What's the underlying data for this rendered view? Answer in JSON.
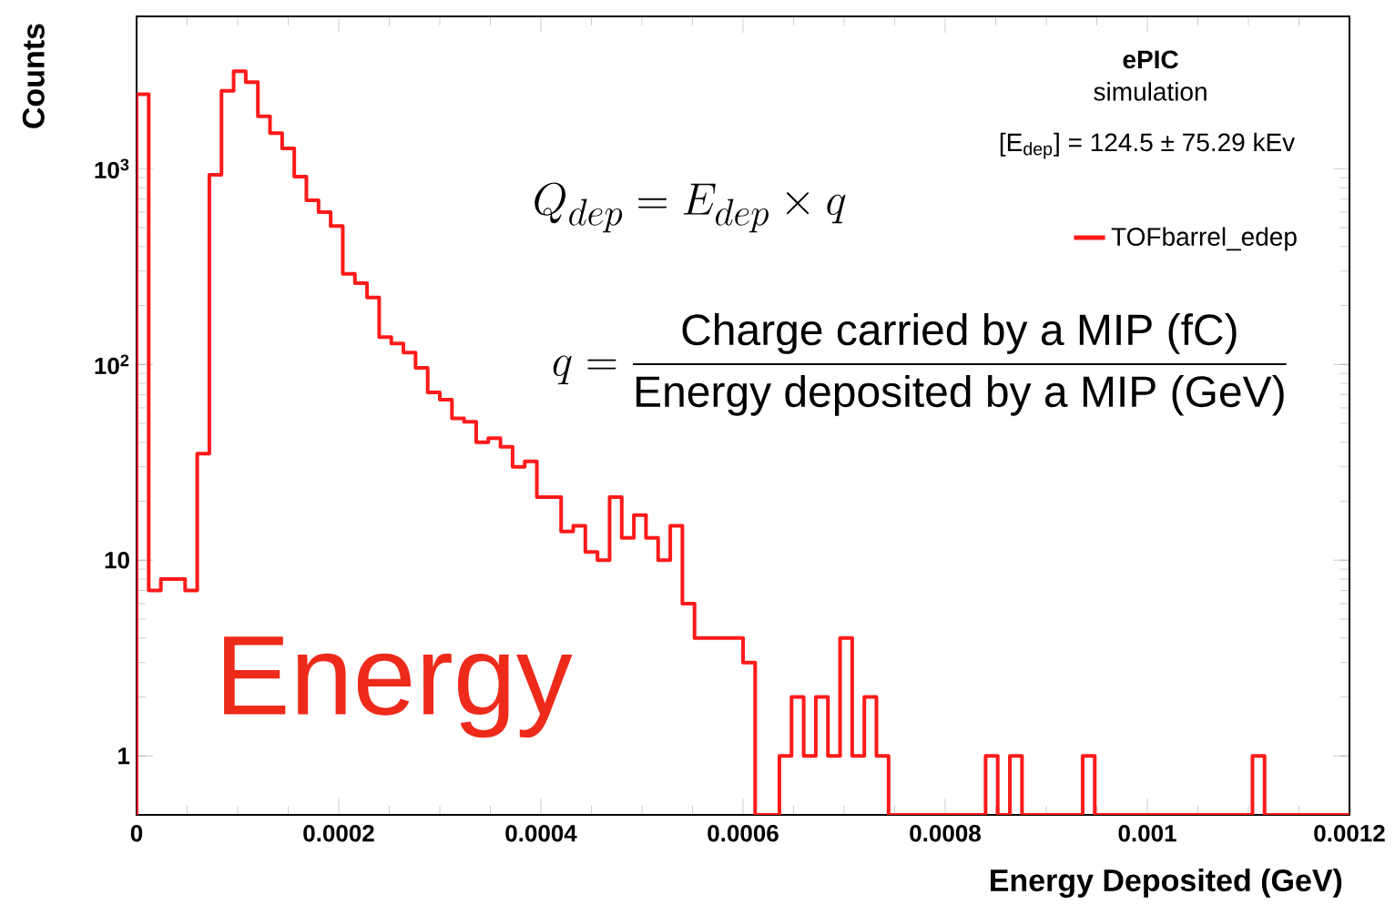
{
  "chart_data": {
    "type": "histogram",
    "xlabel": "Energy Deposited (GeV)",
    "ylabel": "Counts",
    "annotations": [
      "ePIC",
      "simulation",
      "[E$_{dep}$] = 124.5 ± 75.29 kEv",
      "Q_{dep} = E_{dep} \\times q",
      "q = \\frac{\\text{Charge carried by a MIP (fC)}}{\\text{Energy deposited by a MIP (GeV)}}",
      "Energy"
    ],
    "bins": [
      0,
      1.2e-05,
      2.4e-05,
      3.6e-05,
      4.8e-05,
      6e-05,
      7.2e-05,
      8.4e-05,
      9.6e-05,
      0.000108,
      0.00012,
      0.000132,
      0.000144,
      0.000156,
      0.000168,
      0.00018,
      0.000192,
      0.000204,
      0.000216,
      0.000228,
      0.00024,
      0.000252,
      0.000264,
      0.000276,
      0.000288,
      0.0003,
      0.000312,
      0.000324,
      0.000336,
      0.000348,
      0.00036,
      0.000372,
      0.000384,
      0.000396,
      0.000408,
      0.00042,
      0.000432,
      0.000444,
      0.000456,
      0.000468,
      0.00048,
      0.000492,
      0.000504,
      0.000516,
      0.000528,
      0.00054,
      0.000552,
      0.000564,
      0.000576,
      0.000588,
      0.0006,
      0.000612,
      0.000624,
      0.000636,
      0.000648,
      0.00066,
      0.000672,
      0.000684,
      0.000696,
      0.000708,
      0.00072,
      0.000732,
      0.000744,
      0.000756,
      0.000768,
      0.00078,
      0.000792,
      0.000804,
      0.000816,
      0.000828,
      0.00084,
      0.000852,
      0.000864,
      0.000876,
      0.000888,
      0.0009,
      0.000912,
      0.000924,
      0.000936,
      0.000948,
      0.00096,
      0.000972,
      0.000984,
      0.000996,
      0.001008,
      0.00102,
      0.001032,
      0.001044,
      0.001056,
      0.001068,
      0.00108,
      0.001092,
      0.001104,
      0.001116,
      0.001128,
      0.00114,
      0.001152,
      0.001164,
      0.001176,
      0.001188,
      0.0012
    ],
    "series": [
      {
        "name": "TOFbarrel_edep",
        "color": "#ff1a1a",
        "values": [
          2400,
          7,
          8,
          8,
          7,
          35,
          930,
          2500,
          3150,
          2770,
          1850,
          1520,
          1270,
          910,
          690,
          600,
          510,
          290,
          260,
          220,
          138,
          128,
          115,
          96,
          72,
          66,
          53,
          51,
          40,
          42,
          38,
          30,
          32,
          21,
          21,
          14,
          15,
          11,
          10,
          21,
          13,
          17,
          13,
          10,
          15,
          6,
          4,
          4,
          4,
          4,
          3,
          null,
          null,
          1,
          2,
          1,
          2,
          1,
          4,
          1,
          2,
          1,
          null,
          null,
          null,
          null,
          null,
          null,
          null,
          null,
          1,
          null,
          1,
          null,
          null,
          null,
          null,
          null,
          1,
          null,
          null,
          null,
          null,
          null,
          null,
          null,
          null,
          null,
          null,
          null,
          null,
          null,
          1,
          null,
          null,
          null,
          null,
          null,
          null,
          null
        ]
      }
    ],
    "xlim": [
      0,
      0.0012
    ],
    "ylim": [
      0.5,
      6000
    ],
    "xticks": [
      0,
      0.0002,
      0.0004,
      0.0006,
      0.0008,
      0.001,
      0.0012
    ],
    "yticks": [
      1,
      10,
      {
        "value": 100,
        "label": "10$^{2}$"
      },
      {
        "value": 1000,
        "label": "10$^{3}$"
      }
    ],
    "log": true,
    "grid": false,
    "legend": "top right"
  }
}
